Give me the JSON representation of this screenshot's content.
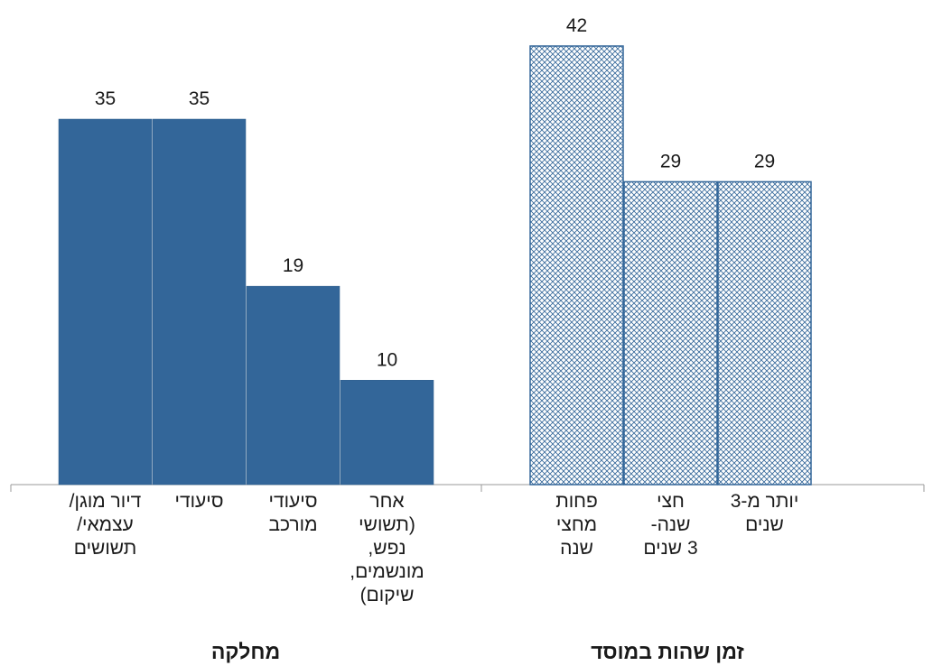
{
  "chart_data": {
    "type": "bar",
    "ylim": [
      0,
      42
    ],
    "groups": [
      {
        "label": "מחלקה",
        "fill": "#336699",
        "pattern": "solid",
        "categories": [
          {
            "label": [
              "דיור מוגן/",
              "עצמאי/",
              "תשושים"
            ],
            "value": 35
          },
          {
            "label": [
              "סיעודי"
            ],
            "value": 35
          },
          {
            "label": [
              "סיעודי",
              "מורכב"
            ],
            "value": 19
          },
          {
            "label": [
              "אחר",
              "(תשושי",
              "נפש,",
              "מונשמים,",
              "שיקום)"
            ],
            "value": 10
          }
        ]
      },
      {
        "label": "זמן שהות במוסד",
        "fill": "#336699",
        "pattern": "crosshatch",
        "categories": [
          {
            "label": [
              "פחות",
              "מחצי",
              "שנה"
            ],
            "value": 42
          },
          {
            "label": [
              "חצי",
              "שנה-",
              "3 שנים"
            ],
            "value": 29
          },
          {
            "label": [
              "יותר מ-3",
              "שנים"
            ],
            "value": 29
          }
        ]
      }
    ]
  }
}
